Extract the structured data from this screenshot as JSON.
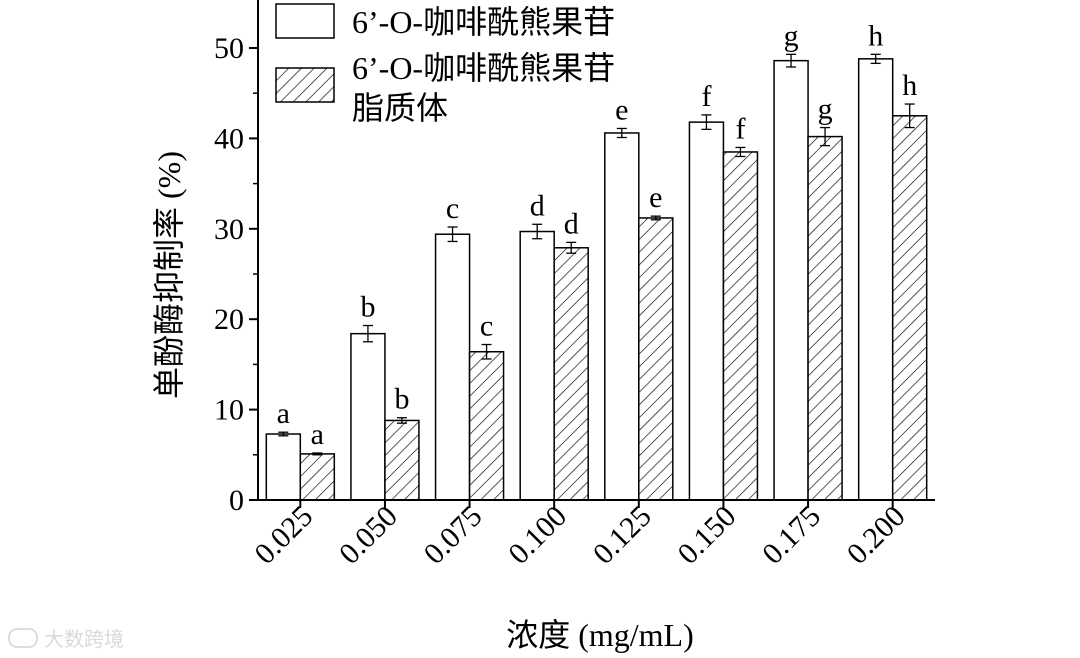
{
  "chart_data": {
    "type": "bar",
    "categories": [
      "0.025",
      "0.050",
      "0.075",
      "0.100",
      "0.125",
      "0.150",
      "0.175",
      "0.200"
    ],
    "series": [
      {
        "name": "6’-O-咖啡酰熊果苷",
        "values": [
          7.3,
          18.4,
          29.4,
          29.7,
          40.6,
          41.8,
          48.6,
          48.8
        ],
        "errors": [
          0.2,
          0.9,
          0.8,
          0.8,
          0.5,
          0.8,
          0.7,
          0.5
        ],
        "letters": [
          "a",
          "b",
          "c",
          "d",
          "e",
          "f",
          "g",
          "h"
        ],
        "fill": "#ffffff",
        "pattern": "none"
      },
      {
        "name": "6’-O-咖啡酰熊果苷脂质体",
        "name_lines": [
          "6’-O-咖啡酰熊果苷",
          "脂质体"
        ],
        "values": [
          5.1,
          8.8,
          16.4,
          27.9,
          31.2,
          38.5,
          40.2,
          42.5
        ],
        "errors": [
          0.1,
          0.3,
          0.8,
          0.6,
          0.2,
          0.5,
          1.0,
          1.3
        ],
        "letters": [
          "a",
          "b",
          "c",
          "d",
          "e",
          "f",
          "g",
          "h"
        ],
        "fill": "#ffffff",
        "pattern": "diagonal-hatch"
      }
    ],
    "xlabel": "浓度 (mg/mL)",
    "ylabel": "单酚酶抑制率 (%)",
    "ylim": [
      0,
      55
    ],
    "yticks": [
      0,
      10,
      20,
      30,
      40,
      50
    ],
    "grid": false,
    "legend": "top-left"
  },
  "watermark": {
    "text": "大数跨境"
  }
}
